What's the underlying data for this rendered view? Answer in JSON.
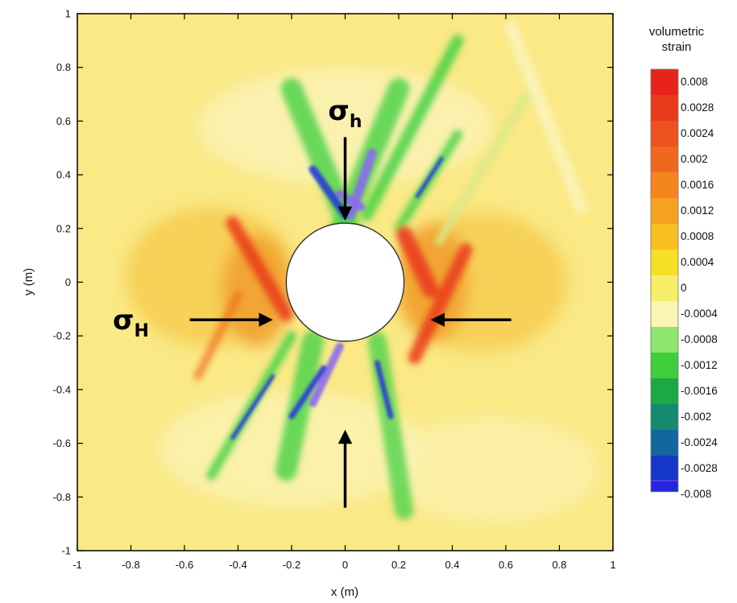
{
  "chart_data": {
    "type": "heatmap",
    "title": "",
    "xlabel": "x (m)",
    "ylabel": "y (m)",
    "xlim": [
      -1,
      1
    ],
    "ylim": [
      -1,
      1
    ],
    "x_ticks": [
      "-1",
      "-0.8",
      "-0.6",
      "-0.4",
      "-0.2",
      "0",
      "0.2",
      "0.4",
      "0.6",
      "0.8",
      "1"
    ],
    "y_ticks": [
      "1",
      "0.8",
      "0.6",
      "0.4",
      "0.2",
      "0",
      "-0.2",
      "-0.4",
      "-0.6",
      "-0.8",
      "-1"
    ],
    "grid": false,
    "borehole": {
      "center": [
        0,
        0
      ],
      "radius": 0.22
    },
    "colorbar": {
      "title_lines": [
        "volumetric",
        "strain"
      ],
      "levels": [
        {
          "label": "0.008",
          "color": "#e8231b"
        },
        {
          "label": "0.0028",
          "color": "#ea3a1c"
        },
        {
          "label": "0.0024",
          "color": "#ee521d"
        },
        {
          "label": "0.002",
          "color": "#f0681e"
        },
        {
          "label": "0.0016",
          "color": "#f4851f"
        },
        {
          "label": "0.0012",
          "color": "#f7a121"
        },
        {
          "label": "0.0008",
          "color": "#f9be22"
        },
        {
          "label": "0.0004",
          "color": "#f6e025"
        },
        {
          "label": "0",
          "color": "#f7ee6a"
        },
        {
          "label": "-0.0004",
          "color": "#fbf6b2"
        },
        {
          "label": "-0.0008",
          "color": "#8ee66e"
        },
        {
          "label": "-0.0012",
          "color": "#3fce3c"
        },
        {
          "label": "-0.0016",
          "color": "#1aa945"
        },
        {
          "label": "-0.002",
          "color": "#168a70"
        },
        {
          "label": "-0.0024",
          "color": "#1466a0"
        },
        {
          "label": "-0.0028",
          "color": "#1737c8"
        },
        {
          "label": "-0.008",
          "color": "#2525e0"
        }
      ],
      "bottom_colors": [
        "#4a3ee8",
        "#6e55ec",
        "#8f6cf0",
        "#a683f2"
      ]
    },
    "annotations": [
      {
        "id": "sigma-h",
        "symbol": "σ",
        "subscript": "h",
        "position": [
          0,
          0.64
        ]
      },
      {
        "id": "sigma-H",
        "symbol": "σ",
        "subscript": "H",
        "position": [
          -0.8,
          -0.14
        ]
      }
    ],
    "arrows": [
      {
        "id": "top",
        "from": [
          0,
          0.54
        ],
        "to": [
          0,
          0.24
        ]
      },
      {
        "id": "bottom",
        "from": [
          0,
          -0.84
        ],
        "to": [
          0,
          -0.56
        ]
      },
      {
        "id": "left",
        "from": [
          -0.58,
          -0.14
        ],
        "to": [
          -0.28,
          -0.14
        ]
      },
      {
        "id": "right",
        "from": [
          0.62,
          -0.14
        ],
        "to": [
          0.33,
          -0.14
        ]
      }
    ],
    "field_colors": {
      "background": "#fae985",
      "light": "#fbf3b8",
      "orange": "#f6c84a",
      "red": "#ea3a1c",
      "green": "#4fd44a",
      "blue": "#2b3bd6",
      "violet": "#8a6cf0"
    }
  }
}
